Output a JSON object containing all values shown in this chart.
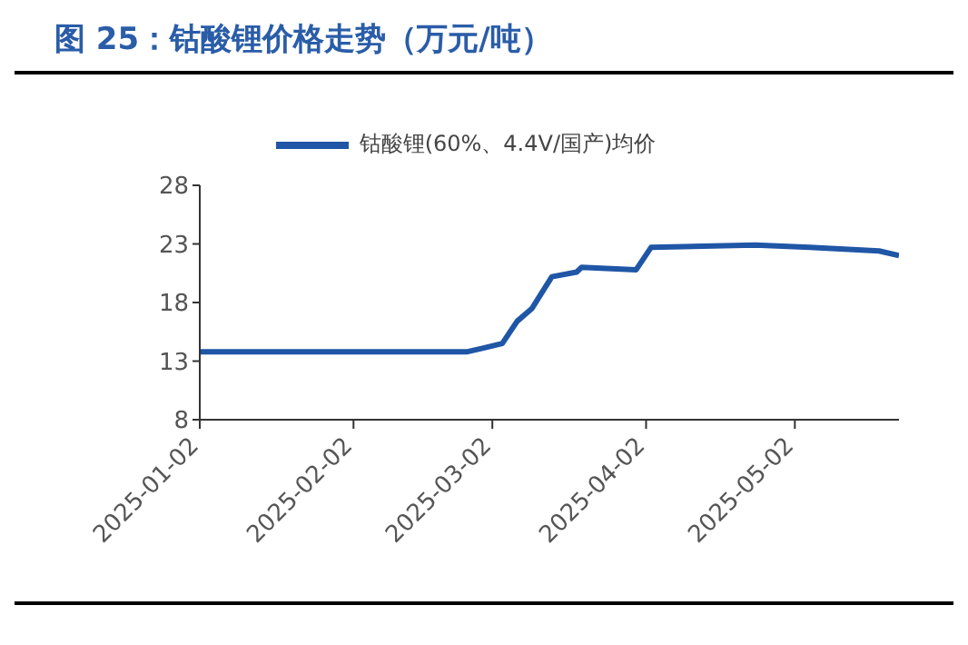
{
  "chart_data": {
    "type": "line",
    "title": "图 25：钴酸锂价格走势（万元/吨）",
    "x": [
      "2025-01-02",
      "2025-02-25",
      "2025-02-28",
      "2025-03-04",
      "2025-03-07",
      "2025-03-10",
      "2025-03-14",
      "2025-03-19",
      "2025-03-20",
      "2025-03-31",
      "2025-04-03",
      "2025-04-24",
      "2025-05-05",
      "2025-05-19",
      "2025-05-23"
    ],
    "series": [
      {
        "name": "钴酸锂(60%、4.4V/国产)均价",
        "color": "#1f56a6",
        "values": [
          13.8,
          13.8,
          14.1,
          14.5,
          16.4,
          17.5,
          20.2,
          20.6,
          21.0,
          20.8,
          22.7,
          22.9,
          22.7,
          22.4,
          22.0
        ]
      }
    ],
    "xlim": [
      "2025-01-02",
      "2025-05-23"
    ],
    "xticks": [
      "2025-01-02",
      "2025-02-02",
      "2025-03-02",
      "2025-04-02",
      "2025-05-02"
    ],
    "ylim": [
      8,
      28
    ],
    "yticks": [
      8,
      13,
      18,
      23,
      28
    ],
    "grid": false,
    "legend": "top",
    "marker": "none",
    "line_style": "solid"
  }
}
